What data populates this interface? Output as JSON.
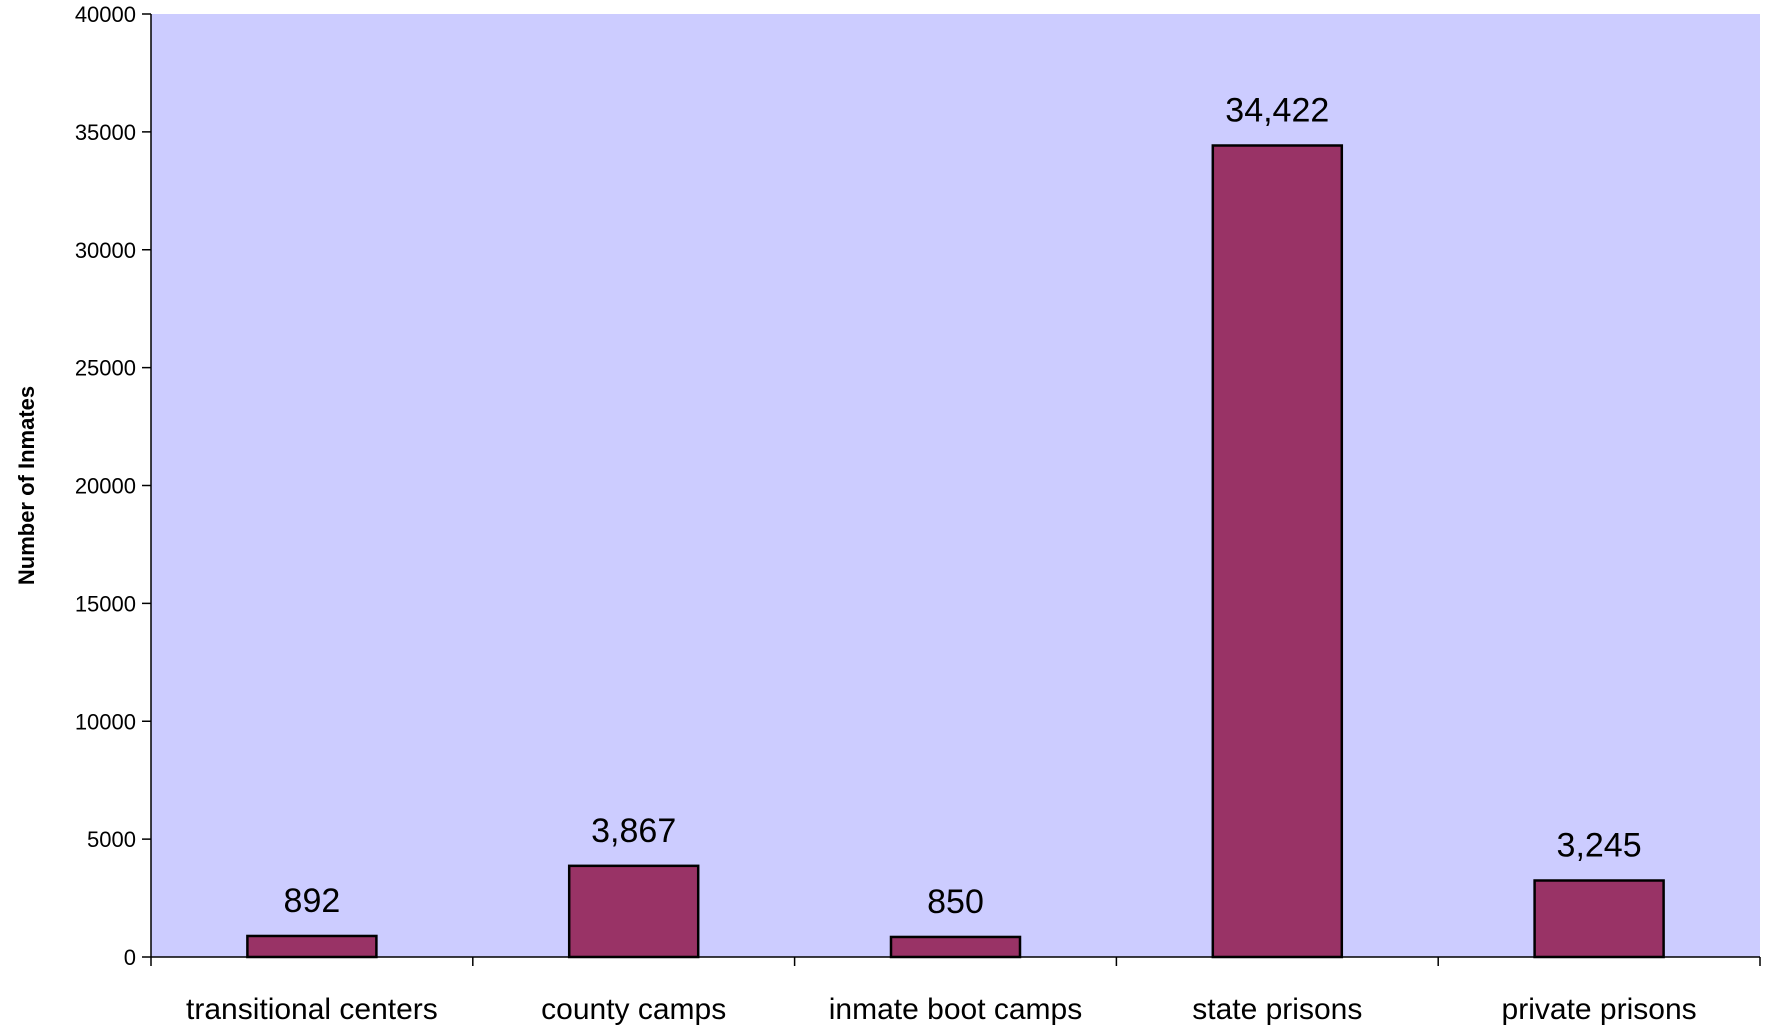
{
  "chart_data": {
    "type": "bar",
    "title": "",
    "xlabel": "",
    "ylabel": "Number of Inmates",
    "categories": [
      "transitional centers",
      "county camps",
      "inmate boot camps",
      "state prisons",
      "private prisons"
    ],
    "values": [
      892,
      3867,
      850,
      34422,
      3245
    ],
    "data_labels": [
      "892",
      "3,867",
      "850",
      "34,422",
      "3,245"
    ],
    "ylim": [
      0,
      40000
    ],
    "yticks": [
      0,
      5000,
      10000,
      15000,
      20000,
      25000,
      30000,
      35000,
      40000
    ],
    "ytick_labels": [
      "0",
      "5000",
      "10000",
      "15000",
      "20000",
      "25000",
      "30000",
      "35000",
      "40000"
    ],
    "grid": false,
    "legend": "none",
    "colors": {
      "plot_background": "#ccccff",
      "bar_fill": "#993366",
      "bar_stroke": "#000000",
      "axis": "#000000"
    }
  }
}
